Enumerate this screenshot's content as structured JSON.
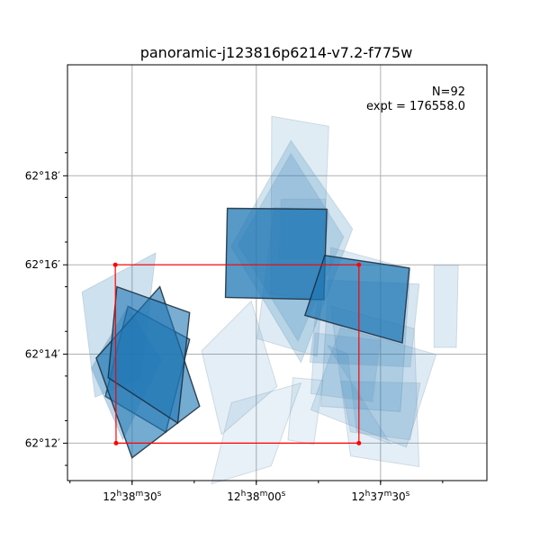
{
  "chart_data": {
    "type": "footprint-map",
    "title": "panoramic-j123816p6214-v7.2-f775w",
    "annotation": {
      "n_label": "N=92",
      "expt_label": "expt = 176558.0"
    },
    "x_tick_labels": [
      {
        "value": 189.625,
        "h": "12",
        "m": "38",
        "s": "30"
      },
      {
        "value": 189.5,
        "h": "12",
        "m": "38",
        "s": "00"
      },
      {
        "value": 189.375,
        "h": "12",
        "m": "37",
        "s": "30"
      }
    ],
    "y_tick_labels": [
      {
        "value": 62.2,
        "text": "62°12′"
      },
      {
        "value": 62.2333,
        "text": "62°14′"
      },
      {
        "value": 62.2667,
        "text": "62°16′"
      },
      {
        "value": 62.3,
        "text": "62°18′"
      }
    ],
    "xlim": [
      189.69,
      189.268
    ],
    "ylim": [
      62.186,
      62.3415
    ],
    "grid": true,
    "colors": {
      "footprint_fill": "#1f77b4",
      "footprint_edge": "#1a2a3a",
      "region_box": "#ff0000",
      "grid": "#b0b0b0"
    },
    "region_box": {
      "corners": [
        [
          189.6419,
          62.2667
        ],
        [
          189.3968,
          62.2667
        ],
        [
          189.3968,
          62.2
        ],
        [
          189.6411,
          62.2
        ]
      ]
    },
    "footprints": [
      {
        "corners": [
          [
            189.6753,
            62.2565
          ],
          [
            189.6012,
            62.2712
          ],
          [
            189.6161,
            62.2245
          ],
          [
            189.6623,
            62.2172
          ]
        ],
        "alpha": 0.22,
        "edge": false
      },
      {
        "corners": [
          [
            189.4845,
            62.3222
          ],
          [
            189.4271,
            62.3185
          ],
          [
            189.4341,
            62.2537
          ],
          [
            189.4853,
            62.2557
          ]
        ],
        "alpha": 0.14,
        "edge": false
      },
      {
        "corners": [
          [
            189.4651,
            62.3132
          ],
          [
            189.4032,
            62.2801
          ],
          [
            189.4551,
            62.2302
          ],
          [
            189.5252,
            62.2735
          ]
        ],
        "alpha": 0.2,
        "edge": false
      },
      {
        "corners": [
          [
            189.4652,
            62.3083
          ],
          [
            189.4122,
            62.2771
          ],
          [
            189.4581,
            62.2382
          ],
          [
            189.5182,
            62.2742
          ]
        ],
        "alpha": 0.18,
        "edge": false
      },
      {
        "corners": [
          [
            189.4822,
            62.2882
          ],
          [
            189.4271,
            62.2873
          ],
          [
            189.4391,
            62.2325
          ],
          [
            189.4992,
            62.2391
          ]
        ],
        "alpha": 0.15,
        "edge": false
      },
      {
        "corners": [
          [
            189.4251,
            62.2732
          ],
          [
            189.3451,
            62.2652
          ],
          [
            189.3551,
            62.2118
          ],
          [
            189.4351,
            62.2138
          ]
        ],
        "alpha": 0.15,
        "edge": false
      },
      {
        "corners": [
          [
            189.3212,
            62.2665
          ],
          [
            189.2968,
            62.2665
          ],
          [
            189.2988,
            62.2358
          ],
          [
            189.3212,
            62.2358
          ]
        ],
        "alpha": 0.15,
        "edge": false
      },
      {
        "corners": [
          [
            189.4152,
            62.2432
          ],
          [
            189.3191,
            62.2332
          ],
          [
            189.3491,
            62.1985
          ],
          [
            189.4451,
            62.2125
          ]
        ],
        "alpha": 0.15,
        "edge": false
      },
      {
        "corners": [
          [
            189.4251,
            62.2512
          ],
          [
            189.3412,
            62.2428
          ],
          [
            189.3362,
            62.1912
          ],
          [
            189.4052,
            62.1952
          ]
        ],
        "alpha": 0.12,
        "edge": false
      },
      {
        "corners": [
          [
            189.5052,
            62.2531
          ],
          [
            189.5551,
            62.2345
          ],
          [
            189.5351,
            62.2032
          ],
          [
            189.4791,
            62.2212
          ]
        ],
        "alpha": 0.12,
        "edge": false
      },
      {
        "corners": [
          [
            189.5251,
            62.2151
          ],
          [
            189.4551,
            62.2225
          ],
          [
            189.4851,
            62.1915
          ],
          [
            189.5451,
            62.1848
          ]
        ],
        "alpha": 0.1,
        "edge": false
      },
      {
        "corners": [
          [
            189.4281,
            62.2365
          ],
          [
            189.4081,
            62.2335
          ],
          [
            189.3991,
            62.2045
          ],
          [
            189.3651,
            62.1998
          ]
        ],
        "alpha": 0.12,
        "edge": false
      },
      {
        "corners": [
          [
            189.4151,
            62.2232
          ],
          [
            189.3351,
            62.2225
          ],
          [
            189.3451,
            62.2012
          ],
          [
            189.4052,
            62.2042
          ]
        ],
        "alpha": 0.15,
        "edge": false
      },
      {
        "corners": [
          [
            189.4631,
            62.2245
          ],
          [
            189.4331,
            62.2235
          ],
          [
            189.4421,
            62.1995
          ],
          [
            189.4681,
            62.2012
          ]
        ],
        "alpha": 0.1,
        "edge": false
      },
      {
        "corners": [
          [
            189.4752,
            62.2912
          ],
          [
            189.4301,
            62.2912
          ],
          [
            189.4325,
            62.2688
          ],
          [
            189.4771,
            62.2688
          ]
        ],
        "alpha": 0.12,
        "edge": false
      },
      {
        "corners": [
          [
            189.4361,
            62.2612
          ],
          [
            189.3361,
            62.2595
          ],
          [
            189.3451,
            62.2285
          ],
          [
            189.4461,
            62.2302
          ]
        ],
        "alpha": 0.18,
        "edge": false
      },
      {
        "corners": [
          [
            189.4411,
            62.2412
          ],
          [
            189.3751,
            62.2385
          ],
          [
            189.3831,
            62.2155
          ],
          [
            189.4451,
            62.2185
          ]
        ],
        "alpha": 0.15,
        "edge": false
      },
      {
        "corners": [
          [
            189.5351,
            62.2902
          ],
          [
            189.5151,
            62.2868
          ],
          [
            189.5251,
            62.2785
          ],
          [
            189.5411,
            62.2815
          ]
        ],
        "alpha": 0.0,
        "edge": false
      },
      {
        "corners": [
          [
            189.5292,
            62.2878
          ],
          [
            189.4291,
            62.2875
          ],
          [
            189.4321,
            62.2537
          ],
          [
            189.5311,
            62.2545
          ]
        ],
        "alpha": 0.75,
        "edge": true
      },
      {
        "corners": [
          [
            189.4311,
            62.2702
          ],
          [
            189.3461,
            62.2655
          ],
          [
            189.3531,
            62.2375
          ],
          [
            189.4511,
            62.2478
          ]
        ],
        "alpha": 0.72,
        "edge": true
      },
      {
        "corners": [
          [
            189.6291,
            62.2512
          ],
          [
            189.5671,
            62.2388
          ],
          [
            189.5911,
            62.2041
          ],
          [
            189.6519,
            62.2175
          ]
        ],
        "alpha": 0.55,
        "edge": true
      },
      {
        "corners": [
          [
            189.6661,
            62.2281
          ],
          [
            189.6291,
            62.2512
          ],
          [
            189.5951,
            62.2311
          ],
          [
            189.6343,
            62.2012
          ]
        ],
        "alpha": 0.3,
        "edge": false
      },
      {
        "corners": [
          [
            189.6611,
            62.2318
          ],
          [
            189.5971,
            62.2585
          ],
          [
            189.5571,
            62.2138
          ],
          [
            189.6251,
            62.1945
          ]
        ],
        "alpha": 0.62,
        "edge": true
      },
      {
        "corners": [
          [
            189.6403,
            62.2585
          ],
          [
            189.5671,
            62.2488
          ],
          [
            189.5791,
            62.2075
          ],
          [
            189.6491,
            62.2245
          ]
        ],
        "alpha": 0.6,
        "edge": true
      },
      {
        "corners": [
          [
            189.6381,
            62.2338
          ],
          [
            189.6381,
            62.2338
          ],
          [
            189.6381,
            62.2338
          ],
          [
            189.6381,
            62.2338
          ]
        ],
        "alpha": 0.0,
        "edge": false
      }
    ]
  }
}
